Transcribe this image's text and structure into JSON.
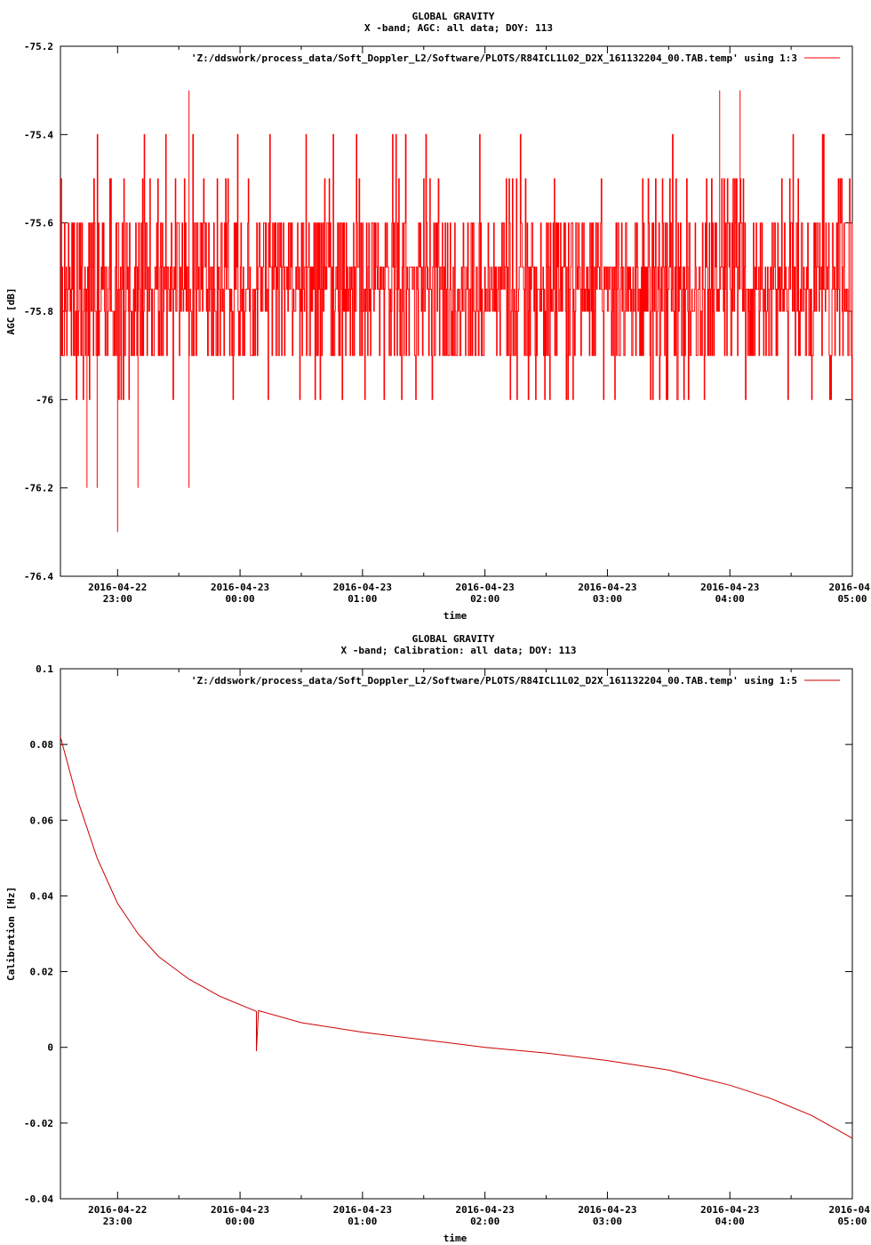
{
  "charts": [
    {
      "title": "GLOBAL GRAVITY",
      "subtitle": "X -band; AGC: all data; DOY: 113",
      "legend": "'Z:/ddswork/process_data/Soft_Doppler_L2/Software/PLOTS/R84ICL1L02_D2X_161132204_00.TAB.temp' using 1:3",
      "xlabel": "time",
      "ylabel": "AGC [dB]"
    },
    {
      "title": "GLOBAL GRAVITY",
      "subtitle": "X -band; Calibration: all data; DOY: 113",
      "legend": "'Z:/ddswork/process_data/Soft_Doppler_L2/Software/PLOTS/R84ICL1L02_D2X_161132204_00.TAB.temp' using 1:5",
      "xlabel": "time",
      "ylabel": "Calibration [Hz]"
    }
  ],
  "chart_data": [
    {
      "type": "line",
      "title": "GLOBAL GRAVITY",
      "subtitle": "X -band; AGC: all data; DOY: 113",
      "xlabel": "time",
      "ylabel": "AGC [dB]",
      "x_range": [
        "2016-04-22 22:32",
        "2016-04-23 05:00"
      ],
      "ylim": [
        -76.4,
        -75.2
      ],
      "y_ticks": [
        "-75.2",
        "-75.4",
        "-75.6",
        "-75.8",
        "-76",
        "-76.2",
        "-76.4"
      ],
      "x_ticks": [
        {
          "date": "2016-04-22",
          "time": "23:00"
        },
        {
          "date": "2016-04-23",
          "time": "00:00"
        },
        {
          "date": "2016-04-23",
          "time": "01:00"
        },
        {
          "date": "2016-04-23",
          "time": "02:00"
        },
        {
          "date": "2016-04-23",
          "time": "03:00"
        },
        {
          "date": "2016-04-23",
          "time": "04:00"
        },
        {
          "date": "2016-04-",
          "time": "05:00"
        }
      ],
      "series": [
        {
          "color": "#ff0000",
          "baseline_levels": [
            -75.7,
            -75.8,
            -75.6,
            -75.9,
            -75.75
          ],
          "spikes": [
            {
              "x": "2016-04-22 23:35",
              "y": -75.3
            },
            {
              "x": "2016-04-23 03:55",
              "y": -75.3
            },
            {
              "x": "2016-04-23 04:05",
              "y": -75.3
            },
            {
              "x": "2016-04-22 23:00",
              "y": -76.3
            },
            {
              "x": "2016-04-22 22:45",
              "y": -76.2
            },
            {
              "x": "2016-04-22 22:50",
              "y": -76.2
            },
            {
              "x": "2016-04-22 23:10",
              "y": -76.2
            },
            {
              "x": "2016-04-22 23:35",
              "y": -76.2
            }
          ]
        }
      ]
    },
    {
      "type": "line",
      "title": "GLOBAL GRAVITY",
      "subtitle": "X -band; Calibration: all data; DOY: 113",
      "xlabel": "time",
      "ylabel": "Calibration [Hz]",
      "x_range": [
        "2016-04-22 22:32",
        "2016-04-23 05:00"
      ],
      "ylim": [
        -0.04,
        0.1
      ],
      "y_ticks": [
        "0.1",
        "0.08",
        "0.06",
        "0.04",
        "0.02",
        "0",
        "-0.02",
        "-0.04"
      ],
      "x_ticks": [
        {
          "date": "2016-04-22",
          "time": "23:00"
        },
        {
          "date": "2016-04-23",
          "time": "00:00"
        },
        {
          "date": "2016-04-23",
          "time": "01:00"
        },
        {
          "date": "2016-04-23",
          "time": "02:00"
        },
        {
          "date": "2016-04-23",
          "time": "03:00"
        },
        {
          "date": "2016-04-23",
          "time": "04:00"
        },
        {
          "date": "2016-04-",
          "time": "05:00"
        }
      ],
      "series": [
        {
          "color": "#cc0000",
          "points": [
            {
              "x": "2016-04-22 22:32",
              "y": 0.082
            },
            {
              "x": "2016-04-22 22:40",
              "y": 0.066
            },
            {
              "x": "2016-04-22 22:50",
              "y": 0.05
            },
            {
              "x": "2016-04-22 23:00",
              "y": 0.038
            },
            {
              "x": "2016-04-22 23:10",
              "y": 0.03
            },
            {
              "x": "2016-04-22 23:20",
              "y": 0.024
            },
            {
              "x": "2016-04-22 23:35",
              "y": 0.018
            },
            {
              "x": "2016-04-22 23:50",
              "y": 0.0135
            },
            {
              "x": "2016-04-23 00:08",
              "y": 0.0095
            },
            {
              "x": "2016-04-23 00:08",
              "y": -0.001
            },
            {
              "x": "2016-04-23 00:09",
              "y": 0.0097
            },
            {
              "x": "2016-04-23 00:30",
              "y": 0.0065
            },
            {
              "x": "2016-04-23 01:00",
              "y": 0.004
            },
            {
              "x": "2016-04-23 01:30",
              "y": 0.002
            },
            {
              "x": "2016-04-23 02:00",
              "y": 0.0
            },
            {
              "x": "2016-04-23 02:30",
              "y": -0.0015
            },
            {
              "x": "2016-04-23 03:00",
              "y": -0.0035
            },
            {
              "x": "2016-04-23 03:30",
              "y": -0.006
            },
            {
              "x": "2016-04-23 04:00",
              "y": -0.01
            },
            {
              "x": "2016-04-23 04:20",
              "y": -0.0135
            },
            {
              "x": "2016-04-23 04:40",
              "y": -0.018
            },
            {
              "x": "2016-04-23 05:00",
              "y": -0.024
            }
          ]
        }
      ]
    }
  ]
}
